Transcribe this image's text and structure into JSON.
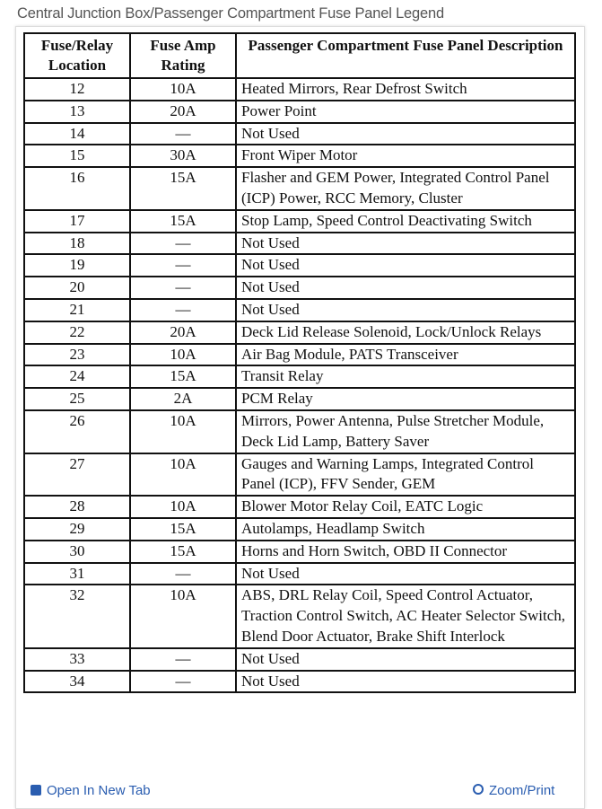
{
  "caption": "Central Junction Box/Passenger Compartment Fuse Panel Legend",
  "table": {
    "headers": [
      "Fuse/Relay Location",
      "Fuse Amp Rating",
      "Passenger Compartment Fuse Panel Description"
    ],
    "rows": [
      [
        "12",
        "10A",
        "Heated Mirrors, Rear Defrost Switch"
      ],
      [
        "13",
        "20A",
        "Power Point"
      ],
      [
        "14",
        "—",
        "Not Used"
      ],
      [
        "15",
        "30A",
        "Front Wiper Motor"
      ],
      [
        "16",
        "15A",
        "Flasher and GEM Power, Integrated Control Panel (ICP) Power, RCC Memory, Cluster"
      ],
      [
        "17",
        "15A",
        "Stop Lamp, Speed Control Deactivating Switch"
      ],
      [
        "18",
        "—",
        "Not Used"
      ],
      [
        "19",
        "—",
        "Not Used"
      ],
      [
        "20",
        "—",
        "Not Used"
      ],
      [
        "21",
        "—",
        "Not Used"
      ],
      [
        "22",
        "20A",
        "Deck Lid Release Solenoid, Lock/Unlock Relays"
      ],
      [
        "23",
        "10A",
        "Air Bag Module, PATS Transceiver"
      ],
      [
        "24",
        "15A",
        "Transit Relay"
      ],
      [
        "25",
        "2A",
        "PCM Relay"
      ],
      [
        "26",
        "10A",
        "Mirrors, Power Antenna, Pulse Stretcher Module, Deck Lid Lamp, Battery Saver"
      ],
      [
        "27",
        "10A",
        "Gauges and Warning Lamps, Integrated Control Panel (ICP), FFV Sender, GEM"
      ],
      [
        "28",
        "10A",
        "Blower Motor Relay Coil, EATC Logic"
      ],
      [
        "29",
        "15A",
        "Autolamps, Headlamp Switch"
      ],
      [
        "30",
        "15A",
        "Horns and Horn Switch, OBD II Connector"
      ],
      [
        "31",
        "—",
        "Not Used"
      ],
      [
        "32",
        "10A",
        "ABS, DRL Relay Coil, Speed Control Actuator, Traction Control Switch, AC Heater Selector Switch, Blend Door Actuator, Brake Shift Interlock"
      ],
      [
        "33",
        "—",
        "Not Used"
      ],
      [
        "34",
        "—",
        "Not Used"
      ]
    ]
  },
  "footer": {
    "open_label": "Open In New Tab",
    "zoom_label": "Zoom/Print"
  }
}
